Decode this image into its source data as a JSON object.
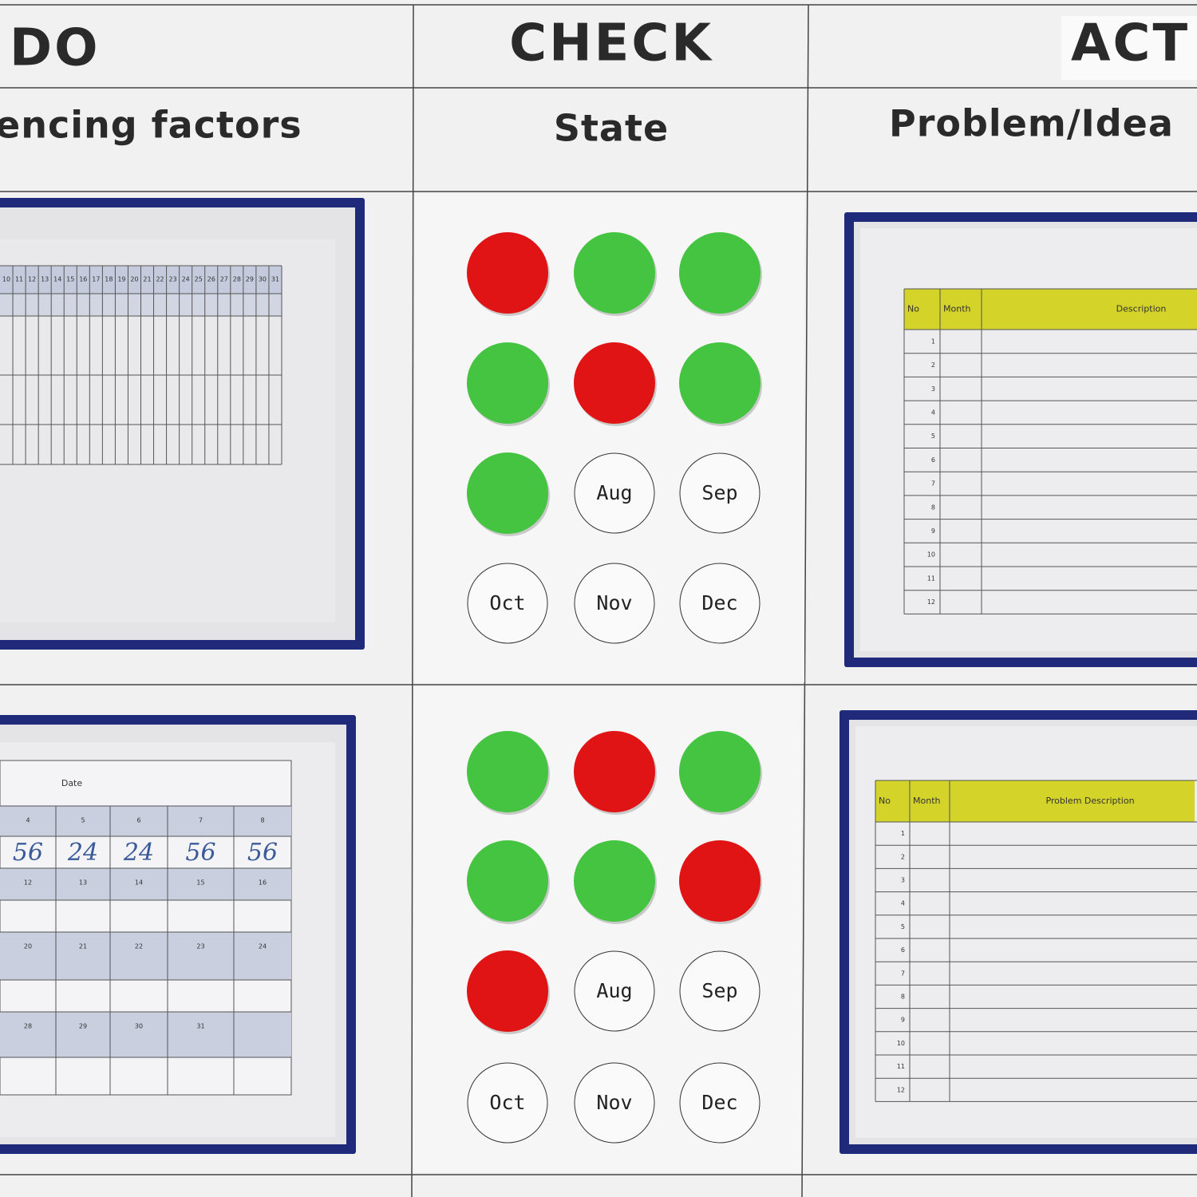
{
  "headers": [
    {
      "title": "DO",
      "subtitle": "encing factors"
    },
    {
      "title": "CHECK",
      "subtitle": "State"
    },
    {
      "title": "ACT",
      "subtitle": "Problem/Idea"
    }
  ],
  "check_panels": [
    {
      "magnets": [
        "#e01414",
        "#44c440",
        "#44c440",
        "#44c440",
        "#e01414",
        "#44c440",
        "#44c440"
      ],
      "month_labels": [
        "Aug",
        "Sep",
        "Oct",
        "Nov",
        "Dec"
      ]
    },
    {
      "magnets": [
        "#44c440",
        "#e01414",
        "#44c440",
        "#44c440",
        "#44c440",
        "#e01414",
        "#e01414"
      ],
      "month_labels": [
        "Aug",
        "Sep",
        "Oct",
        "Nov",
        "Dec"
      ]
    }
  ],
  "attendance_sheet": {
    "day_columns": [
      10,
      11,
      12,
      13,
      14,
      15,
      16,
      17,
      18,
      19,
      20,
      21,
      22,
      23,
      24,
      25,
      26,
      27,
      28,
      29,
      30,
      31
    ]
  },
  "calendar_sheet": {
    "label": "Date",
    "rows": [
      [
        4,
        5,
        6,
        7,
        8
      ],
      [
        56,
        24,
        24,
        56,
        56
      ],
      [
        12,
        13,
        14,
        15,
        16
      ],
      [
        20,
        21,
        22,
        23,
        24
      ],
      [
        28,
        29,
        30,
        31
      ]
    ]
  },
  "problem_sheets": [
    {
      "headers": [
        "No",
        "Month",
        "Description"
      ],
      "row_numbers": [
        1,
        2,
        3,
        4,
        5,
        6,
        7,
        8,
        9,
        10,
        11,
        12
      ]
    },
    {
      "headers": [
        "No",
        "Month",
        "Problem Description"
      ],
      "row_numbers": [
        1,
        2,
        3,
        4,
        5,
        6,
        7,
        8,
        9,
        10,
        11,
        12
      ]
    }
  ]
}
